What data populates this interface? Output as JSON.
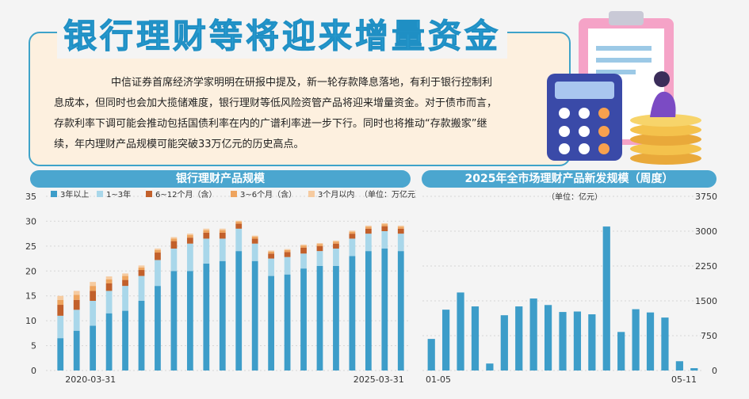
{
  "title": "银行理财等将迎来增量资金",
  "paragraph": "中信证券首席经济学家明明在研报中提及，新一轮存款降息落地，有利于银行控制利息成本，但同时也会加大揽储难度，银行理财等低风险资管产品将迎来增量资金。对于债市而言，存款利率下调可能会推动包括国债利率在内的广谱利率进一步下行。同时也将推动“存款搬家”继续，年内理财产品规模可能突破33万亿元的历史高点。",
  "colors": {
    "accent": "#3ea3c9",
    "bar_dark": "#3d9dc9",
    "bar_light": "#a9d7ea",
    "bar_brown": "#c2602b",
    "bar_tan": "#eea45e",
    "bar_pale": "#f6cba0"
  },
  "chart_data": [
    {
      "type": "bar",
      "stacked": true,
      "title": "银行理财产品规模",
      "unit_label": "（单位：万亿元）",
      "x_first_label": "2020-03-31",
      "x_last_label": "2025-03-31",
      "ylim": [
        0,
        35
      ],
      "yticks": [
        0,
        5,
        10,
        15,
        20,
        25,
        30,
        35
      ],
      "series": [
        {
          "name": "3年以上",
          "values": [
            6.5,
            8,
            9,
            11.5,
            12,
            14,
            17,
            20,
            20,
            21.5,
            22,
            24,
            22,
            19,
            19.3,
            20.5,
            21,
            21,
            23,
            24,
            24.5,
            24
          ]
        },
        {
          "name": "1~3年",
          "values": [
            4.5,
            4.2,
            5,
            4.5,
            5,
            5,
            5.2,
            4.5,
            5.5,
            5,
            4.5,
            4.5,
            3.5,
            3.5,
            3.5,
            3,
            3,
            3.5,
            3.5,
            3.5,
            3.5,
            3.5
          ]
        },
        {
          "name": "6~12个月（含）",
          "values": [
            2.2,
            2,
            2,
            1.5,
            1.2,
            1.2,
            1.5,
            1.5,
            1.2,
            1.2,
            1.2,
            1,
            1,
            1,
            1,
            1.2,
            1,
            1,
            1,
            1,
            1,
            1
          ]
        },
        {
          "name": "3~6个月（含）",
          "values": [
            1,
            1,
            1,
            0.8,
            0.8,
            0.5,
            0.5,
            0.5,
            0.5,
            0.5,
            0.5,
            0.4,
            0.4,
            0.4,
            0.4,
            0.4,
            0.4,
            0.4,
            0.4,
            0.4,
            0.4,
            0.4
          ]
        },
        {
          "name": "3个月以内",
          "values": [
            0.8,
            0.8,
            0.8,
            0.6,
            0.5,
            0.4,
            0.3,
            0.3,
            0.3,
            0.3,
            0.3,
            0.2,
            0.2,
            0.2,
            0.2,
            0.2,
            0.2,
            0.2,
            0.2,
            0.2,
            0.2,
            0.2
          ]
        }
      ]
    },
    {
      "type": "bar",
      "title": "2025年全市场理财产品新发规模（周度）",
      "unit_label": "（单位：亿元）",
      "x_first_label": "01-05",
      "x_last_label": "05-11",
      "ylim": [
        0,
        3750
      ],
      "yticks": [
        0,
        750,
        1500,
        2250,
        3000,
        3750
      ],
      "values": [
        680,
        1310,
        1680,
        1380,
        150,
        1190,
        1380,
        1550,
        1410,
        1260,
        1270,
        1210,
        3100,
        830,
        1320,
        1250,
        1140,
        200,
        50
      ]
    }
  ]
}
